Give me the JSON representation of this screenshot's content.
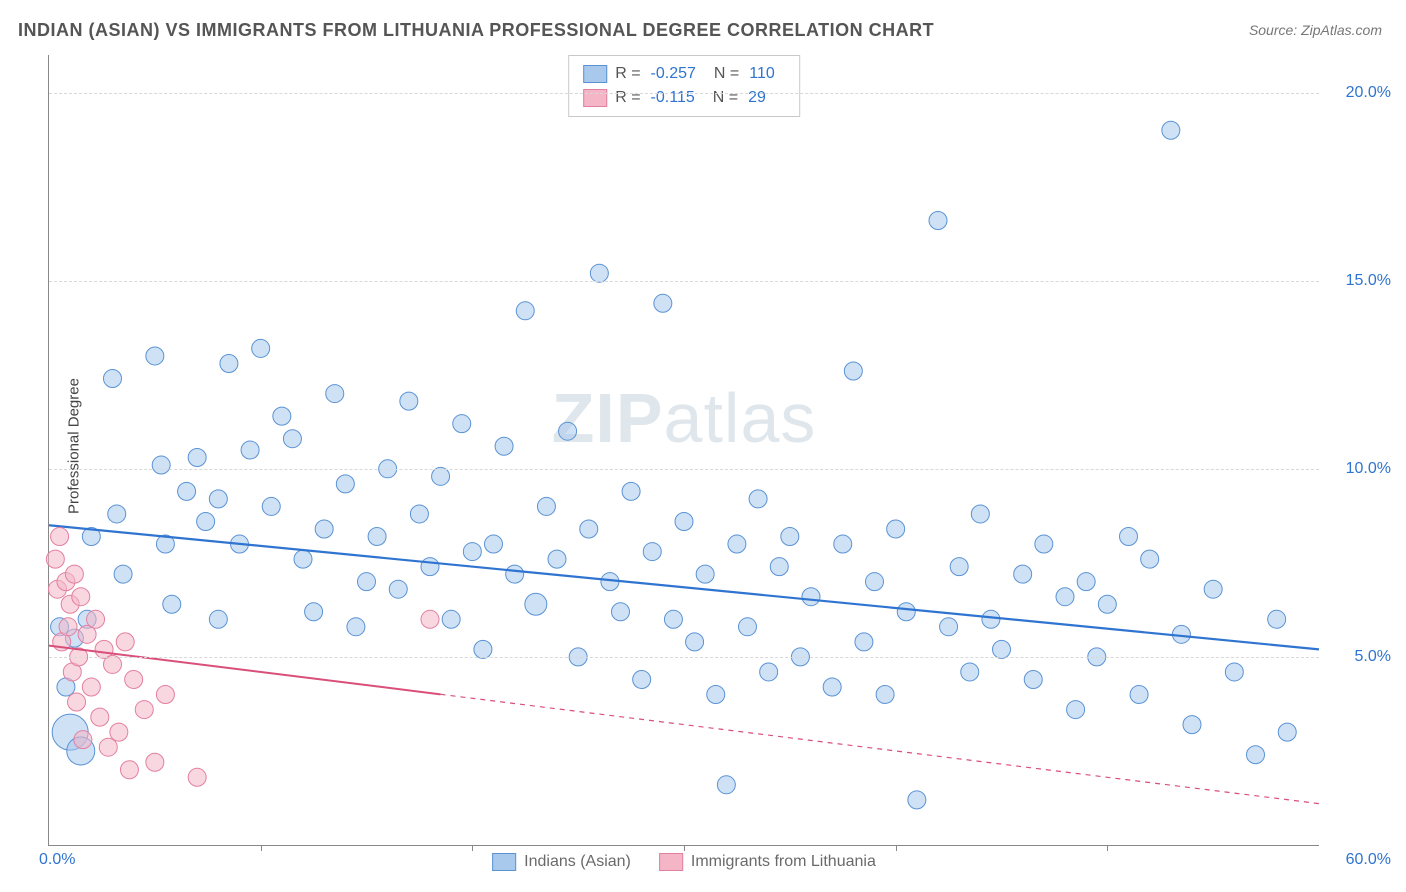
{
  "title": "INDIAN (ASIAN) VS IMMIGRANTS FROM LITHUANIA PROFESSIONAL DEGREE CORRELATION CHART",
  "source_label": "Source: ZipAtlas.com",
  "ylabel": "Professional Degree",
  "watermark_a": "ZIP",
  "watermark_b": "atlas",
  "chart": {
    "type": "scatter",
    "background_color": "#ffffff",
    "grid_color": "#d8d8d8",
    "axis_color": "#888888",
    "xlim": [
      0,
      60
    ],
    "ylim": [
      0,
      21
    ],
    "x_tick_start_label": "0.0%",
    "x_tick_end_label": "60.0%",
    "x_tick_marks": [
      10,
      20,
      30,
      40,
      50
    ],
    "y_grid": [
      {
        "value": 5,
        "label": "5.0%"
      },
      {
        "value": 10,
        "label": "10.0%"
      },
      {
        "value": 15,
        "label": "15.0%"
      },
      {
        "value": 20,
        "label": "20.0%"
      }
    ],
    "series": [
      {
        "id": "indians",
        "label": "Indians (Asian)",
        "fill_color": "#a8c8ec",
        "stroke_color": "#5a93d4",
        "fill_opacity": 0.55,
        "line_color": "#2f74d0",
        "line_width": 2.2,
        "marker_radius": 9,
        "R_label": "R =",
        "R_value": "-0.257",
        "N_label": "N =",
        "N_value": "110",
        "trend": {
          "x1": 0,
          "y1": 8.5,
          "x2": 60,
          "y2": 5.2,
          "solid_to_x": 60
        },
        "points": [
          [
            0.5,
            5.8
          ],
          [
            0.8,
            4.2
          ],
          [
            1.0,
            3.0,
            18
          ],
          [
            1.2,
            5.5
          ],
          [
            1.5,
            2.5,
            14
          ],
          [
            1.8,
            6.0
          ],
          [
            2.0,
            8.2
          ],
          [
            3.0,
            12.4
          ],
          [
            3.2,
            8.8
          ],
          [
            3.5,
            7.2
          ],
          [
            5.0,
            13.0
          ],
          [
            5.3,
            10.1
          ],
          [
            5.5,
            8.0
          ],
          [
            5.8,
            6.4
          ],
          [
            6.5,
            9.4
          ],
          [
            7.0,
            10.3
          ],
          [
            7.4,
            8.6
          ],
          [
            8.0,
            9.2
          ],
          [
            8.0,
            6.0
          ],
          [
            8.5,
            12.8
          ],
          [
            9.0,
            8.0
          ],
          [
            9.5,
            10.5
          ],
          [
            10.0,
            13.2
          ],
          [
            10.5,
            9.0
          ],
          [
            11.0,
            11.4
          ],
          [
            11.5,
            10.8
          ],
          [
            12.0,
            7.6
          ],
          [
            12.5,
            6.2
          ],
          [
            13.0,
            8.4
          ],
          [
            13.5,
            12.0
          ],
          [
            14.0,
            9.6
          ],
          [
            14.5,
            5.8
          ],
          [
            15.0,
            7.0
          ],
          [
            15.5,
            8.2
          ],
          [
            16.0,
            10.0
          ],
          [
            16.5,
            6.8
          ],
          [
            17.0,
            11.8
          ],
          [
            17.5,
            8.8
          ],
          [
            18.0,
            7.4
          ],
          [
            18.5,
            9.8
          ],
          [
            19.0,
            6.0
          ],
          [
            19.5,
            11.2
          ],
          [
            20.0,
            7.8
          ],
          [
            20.5,
            5.2
          ],
          [
            21.0,
            8.0
          ],
          [
            21.5,
            10.6
          ],
          [
            22.0,
            7.2
          ],
          [
            22.5,
            14.2
          ],
          [
            23.0,
            6.4,
            11
          ],
          [
            23.5,
            9.0
          ],
          [
            24.0,
            7.6
          ],
          [
            24.5,
            11.0
          ],
          [
            25.0,
            5.0
          ],
          [
            25.5,
            8.4
          ],
          [
            26.0,
            15.2
          ],
          [
            26.5,
            7.0
          ],
          [
            27.0,
            6.2
          ],
          [
            27.5,
            9.4
          ],
          [
            28.0,
            4.4
          ],
          [
            28.5,
            7.8
          ],
          [
            29.0,
            14.4
          ],
          [
            29.5,
            6.0
          ],
          [
            30.0,
            8.6
          ],
          [
            30.5,
            5.4
          ],
          [
            31.0,
            7.2
          ],
          [
            31.5,
            4.0
          ],
          [
            32.0,
            1.6
          ],
          [
            32.5,
            8.0
          ],
          [
            33.0,
            5.8
          ],
          [
            33.5,
            9.2
          ],
          [
            34.0,
            4.6
          ],
          [
            34.5,
            7.4
          ],
          [
            35.0,
            8.2
          ],
          [
            35.5,
            5.0
          ],
          [
            36.0,
            6.6
          ],
          [
            37.0,
            4.2
          ],
          [
            37.5,
            8.0
          ],
          [
            38.0,
            12.6
          ],
          [
            38.5,
            5.4
          ],
          [
            39.0,
            7.0
          ],
          [
            39.5,
            4.0
          ],
          [
            40.0,
            8.4
          ],
          [
            40.5,
            6.2
          ],
          [
            41.0,
            1.2
          ],
          [
            42.0,
            16.6
          ],
          [
            42.5,
            5.8
          ],
          [
            43.0,
            7.4
          ],
          [
            43.5,
            4.6
          ],
          [
            44.0,
            8.8
          ],
          [
            44.5,
            6.0
          ],
          [
            45.0,
            5.2
          ],
          [
            46.0,
            7.2
          ],
          [
            46.5,
            4.4
          ],
          [
            47.0,
            8.0
          ],
          [
            48.0,
            6.6
          ],
          [
            48.5,
            3.6
          ],
          [
            49.0,
            7.0
          ],
          [
            49.5,
            5.0
          ],
          [
            50.0,
            6.4
          ],
          [
            51.0,
            8.2
          ],
          [
            51.5,
            4.0
          ],
          [
            52.0,
            7.6
          ],
          [
            53.0,
            19.0
          ],
          [
            53.5,
            5.6
          ],
          [
            54.0,
            3.2
          ],
          [
            55.0,
            6.8
          ],
          [
            56.0,
            4.6
          ],
          [
            57.0,
            2.4
          ],
          [
            58.0,
            6.0
          ],
          [
            58.5,
            3.0
          ]
        ]
      },
      {
        "id": "lithuania",
        "label": "Immigrants from Lithuania",
        "fill_color": "#f4b6c6",
        "stroke_color": "#e37fa0",
        "fill_opacity": 0.55,
        "line_color": "#d94f7a",
        "line_width": 2.0,
        "marker_radius": 9,
        "R_label": "R =",
        "R_value": "-0.115",
        "N_label": "N =",
        "N_value": "29",
        "trend": {
          "x1": 0,
          "y1": 5.3,
          "x2": 60,
          "y2": 1.1,
          "solid_to_x": 18.5
        },
        "points": [
          [
            0.3,
            7.6
          ],
          [
            0.4,
            6.8
          ],
          [
            0.5,
            8.2
          ],
          [
            0.6,
            5.4
          ],
          [
            0.8,
            7.0
          ],
          [
            0.9,
            5.8
          ],
          [
            1.0,
            6.4
          ],
          [
            1.1,
            4.6
          ],
          [
            1.2,
            7.2
          ],
          [
            1.3,
            3.8
          ],
          [
            1.4,
            5.0
          ],
          [
            1.5,
            6.6
          ],
          [
            1.6,
            2.8
          ],
          [
            1.8,
            5.6
          ],
          [
            2.0,
            4.2
          ],
          [
            2.2,
            6.0
          ],
          [
            2.4,
            3.4
          ],
          [
            2.6,
            5.2
          ],
          [
            2.8,
            2.6
          ],
          [
            3.0,
            4.8
          ],
          [
            3.3,
            3.0
          ],
          [
            3.6,
            5.4
          ],
          [
            3.8,
            2.0
          ],
          [
            4.0,
            4.4
          ],
          [
            4.5,
            3.6
          ],
          [
            5.0,
            2.2
          ],
          [
            5.5,
            4.0
          ],
          [
            7.0,
            1.8
          ],
          [
            18.0,
            6.0
          ]
        ]
      }
    ]
  },
  "tick_label_color": "#2f74d0",
  "tick_label_fontsize": 16,
  "title_color": "#555555",
  "legend_border_color": "#c8c8c8"
}
